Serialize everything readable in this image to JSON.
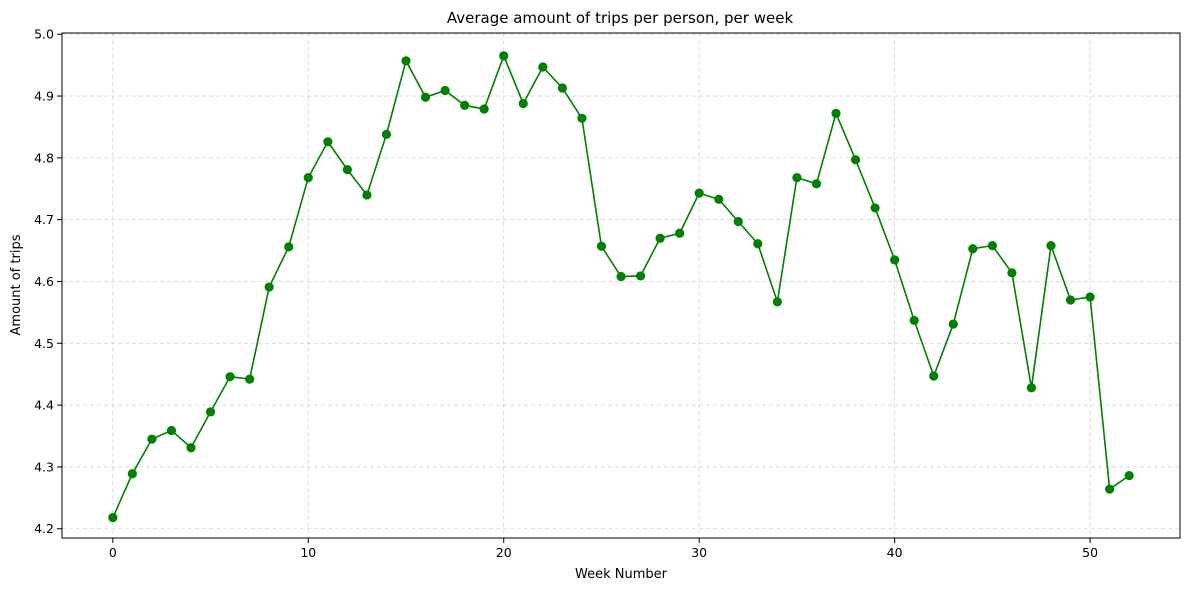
{
  "chart_data": {
    "type": "line",
    "title": "Average amount of trips per person, per week",
    "xlabel": "Week Number",
    "ylabel": "Amount of trips",
    "xlim": [
      -2.6,
      54.6
    ],
    "ylim": [
      4.185,
      5.002
    ],
    "xticks": [
      0,
      10,
      20,
      30,
      40,
      50
    ],
    "yticks": [
      4.2,
      4.3,
      4.4,
      4.5,
      4.6,
      4.7,
      4.8,
      4.9,
      5.0
    ],
    "ytick_labels": [
      "4.2",
      "4.3",
      "4.4",
      "4.5",
      "4.6",
      "4.7",
      "4.8",
      "4.9",
      "5.0"
    ],
    "grid": true,
    "color": "#008000",
    "series": [
      {
        "name": "trips",
        "x": [
          0,
          1,
          2,
          3,
          4,
          5,
          6,
          7,
          8,
          9,
          10,
          11,
          12,
          13,
          14,
          15,
          16,
          17,
          18,
          19,
          20,
          21,
          22,
          23,
          24,
          25,
          26,
          27,
          28,
          29,
          30,
          31,
          32,
          33,
          34,
          35,
          36,
          37,
          38,
          39,
          40,
          41,
          42,
          43,
          44,
          45,
          46,
          47,
          48,
          49,
          50,
          51,
          52
        ],
        "values": [
          4.218,
          4.289,
          4.345,
          4.359,
          4.331,
          4.389,
          4.446,
          4.442,
          4.591,
          4.656,
          4.768,
          4.826,
          4.781,
          4.74,
          4.838,
          4.957,
          4.898,
          4.909,
          4.885,
          4.879,
          4.965,
          4.888,
          4.947,
          4.913,
          4.864,
          4.657,
          4.608,
          4.609,
          4.67,
          4.678,
          4.743,
          4.733,
          4.697,
          4.661,
          4.567,
          4.768,
          4.758,
          4.872,
          4.797,
          4.719,
          4.635,
          4.537,
          4.447,
          4.531,
          4.653,
          4.658,
          4.614,
          4.428,
          4.658,
          4.57,
          4.575,
          4.264,
          4.286
        ]
      }
    ]
  }
}
